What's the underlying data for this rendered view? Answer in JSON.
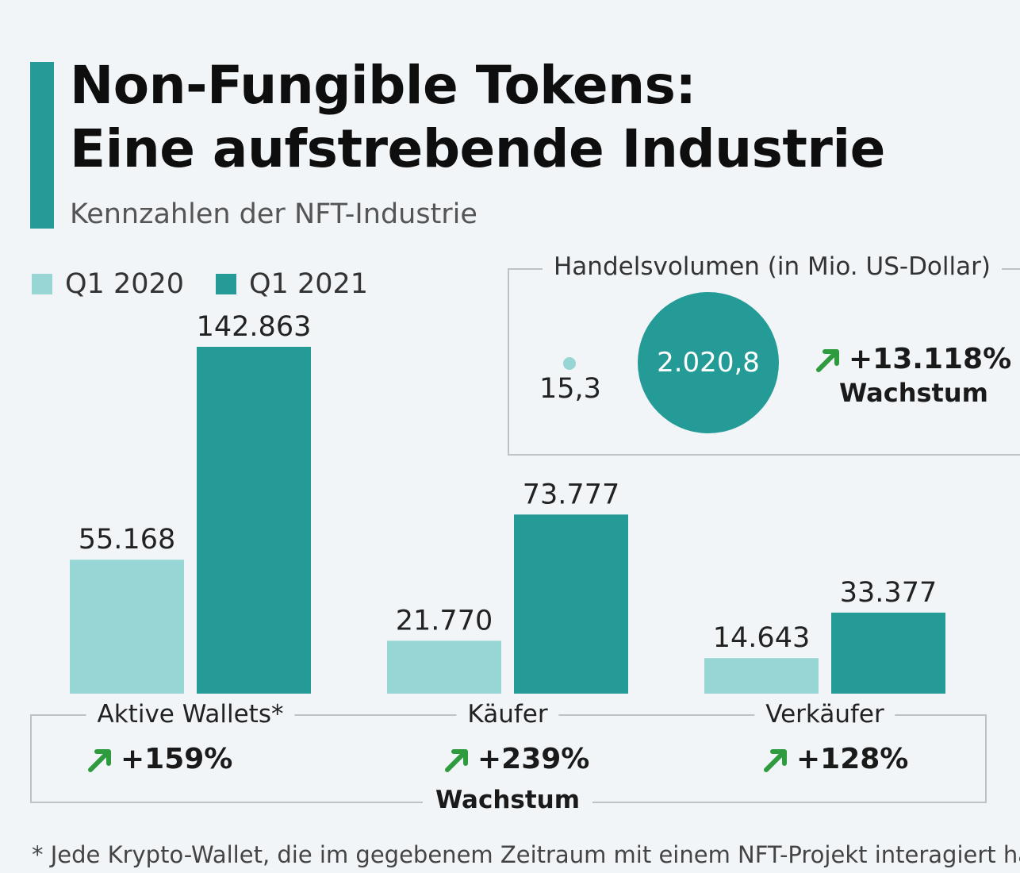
{
  "title_line1": "Non-Fungible Tokens:",
  "title_line2": "Eine aufstrebende Industrie",
  "subtitle": "Kennzahlen der NFT-Industrie",
  "colors": {
    "light": "#97d6d4",
    "dark": "#259b98",
    "arrow": "#2e9c3e",
    "accent_bar": "#259b98"
  },
  "icons": {
    "growth": "arrow-up-right-icon"
  },
  "chart_data": {
    "type": "bar",
    "categories": [
      "Aktive Wallets*",
      "Käufer",
      "Verkäufer"
    ],
    "series": [
      {
        "name": "Q1 2020",
        "values": [
          55168,
          21770,
          14643
        ],
        "labels": [
          "55.168",
          "21.770",
          "14.643"
        ]
      },
      {
        "name": "Q1 2021",
        "values": [
          142863,
          73777,
          33377
        ],
        "labels": [
          "142.863",
          "73.777",
          "33.377"
        ]
      }
    ],
    "ylim": [
      0,
      142863
    ],
    "growth": [
      "+159%",
      "+239%",
      "+128%"
    ],
    "growth_label": "Wachstum"
  },
  "volume": {
    "title": "Handelsvolumen (in Mio. US-Dollar)",
    "q1_2020": "15,3",
    "q1_2021": "2.020,8",
    "growth": "+13.118%",
    "growth_label": "Wachstum"
  },
  "footnote": "* Jede Krypto-Wallet, die im gegebenem Zeitraum mit einem NFT-Projekt interagiert hat"
}
